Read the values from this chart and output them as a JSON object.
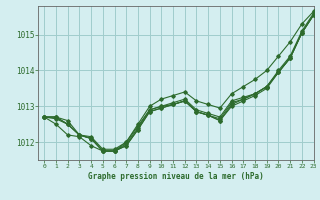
{
  "title": "Graphe pression niveau de la mer (hPa)",
  "background_color": "#d4eef0",
  "grid_color": "#a0cccc",
  "line_color": "#2d6b2d",
  "xlim": [
    -0.5,
    23
  ],
  "ylim": [
    1011.5,
    1015.8
  ],
  "yticks": [
    1012,
    1013,
    1014,
    1015
  ],
  "xticks": [
    0,
    1,
    2,
    3,
    4,
    5,
    6,
    7,
    8,
    9,
    10,
    11,
    12,
    13,
    14,
    15,
    16,
    17,
    18,
    19,
    20,
    21,
    22,
    23
  ],
  "series": [
    [
      1012.7,
      1012.7,
      1012.5,
      1012.2,
      1012.1,
      1011.75,
      1011.75,
      1011.9,
      1012.35,
      1012.85,
      1012.95,
      1013.05,
      1013.15,
      1012.85,
      1012.75,
      1012.6,
      1013.0,
      1013.15,
      1013.3,
      1013.5,
      1013.95,
      1014.35,
      1015.05,
      1015.55
    ],
    [
      1012.7,
      1012.7,
      1012.5,
      1012.2,
      1012.1,
      1011.75,
      1011.75,
      1011.9,
      1012.35,
      1012.85,
      1012.95,
      1013.05,
      1013.15,
      1012.85,
      1012.75,
      1012.6,
      1013.05,
      1013.2,
      1013.35,
      1013.55,
      1013.95,
      1014.35,
      1015.05,
      1015.55
    ],
    [
      1012.7,
      1012.5,
      1012.2,
      1012.15,
      1011.9,
      1011.75,
      1011.75,
      1011.95,
      1012.4,
      1012.9,
      1013.0,
      1013.05,
      1013.15,
      1012.85,
      1012.75,
      1012.65,
      1013.1,
      1013.2,
      1013.35,
      1013.55,
      1013.95,
      1014.35,
      1015.05,
      1015.55
    ],
    [
      1012.7,
      1012.7,
      1012.6,
      1012.2,
      1012.15,
      1011.8,
      1011.8,
      1012.0,
      1012.45,
      1012.9,
      1013.0,
      1013.1,
      1013.2,
      1012.9,
      1012.8,
      1012.7,
      1013.15,
      1013.25,
      1013.35,
      1013.55,
      1014.0,
      1014.4,
      1015.1,
      1015.6
    ]
  ],
  "series_diverge": [
    1012.7,
    1012.65,
    1012.5,
    1012.2,
    1012.1,
    1011.75,
    1011.75,
    1012.0,
    1012.5,
    1013.0,
    1013.2,
    1013.3,
    1013.4,
    1013.15,
    1013.05,
    1012.95,
    1013.35,
    1013.55,
    1013.75,
    1014.0,
    1014.4,
    1014.8,
    1015.3,
    1015.65
  ]
}
